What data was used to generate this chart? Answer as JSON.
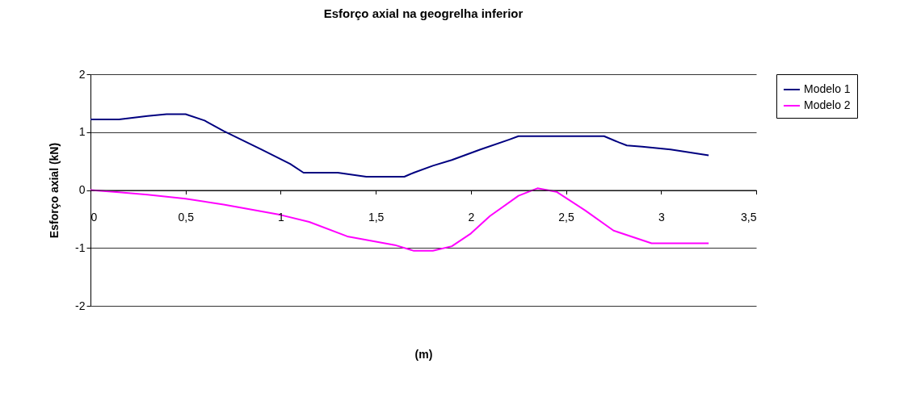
{
  "chart_data": {
    "type": "line",
    "title": "Esforço axial na geogrelha inferior",
    "xlabel": "(m)",
    "ylabel": "Esforço axial (kN)",
    "xlim": [
      0,
      3.5
    ],
    "xticks": [
      0,
      {
        "value": 0.5,
        "label": "0,5"
      },
      1,
      {
        "value": 1.5,
        "label": "1,5"
      },
      2,
      {
        "value": 2.5,
        "label": "2,5"
      },
      3,
      {
        "value": 3.5,
        "label": "3,5"
      }
    ],
    "ylim": [
      -2,
      2
    ],
    "yticks": [
      -2,
      -1,
      0,
      1,
      2
    ],
    "grid": "y",
    "legend": "right",
    "marker": "none",
    "line_style": "solid",
    "series": [
      {
        "name": "Modelo 1",
        "color": "#000080",
        "x": [
          0,
          0.15,
          0.3,
          0.4,
          0.5,
          0.6,
          0.7,
          0.9,
          1.05,
          1.12,
          1.3,
          1.45,
          1.65,
          1.7,
          1.8,
          1.9,
          2.05,
          2.2,
          2.25,
          2.7,
          2.78,
          2.82,
          2.9,
          3.05,
          3.25
        ],
        "values": [
          1.22,
          1.22,
          1.28,
          1.31,
          1.31,
          1.2,
          1.02,
          0.7,
          0.45,
          0.3,
          0.3,
          0.23,
          0.23,
          0.3,
          0.42,
          0.52,
          0.7,
          0.87,
          0.93,
          0.93,
          0.82,
          0.77,
          0.75,
          0.7,
          0.6
        ]
      },
      {
        "name": "Modelo 2",
        "color": "#ff00ff",
        "x": [
          0,
          0.15,
          0.3,
          0.5,
          0.7,
          1,
          1.15,
          1.35,
          1.6,
          1.7,
          1.8,
          1.9,
          2.0,
          2.1,
          2.25,
          2.35,
          2.45,
          2.6,
          2.75,
          2.95,
          3.25
        ],
        "values": [
          0,
          -0.04,
          -0.08,
          -0.15,
          -0.25,
          -0.43,
          -0.55,
          -0.8,
          -0.95,
          -1.05,
          -1.05,
          -0.97,
          -0.75,
          -0.45,
          -0.1,
          0.03,
          -0.03,
          -0.35,
          -0.7,
          -0.92,
          -0.92
        ]
      }
    ]
  }
}
